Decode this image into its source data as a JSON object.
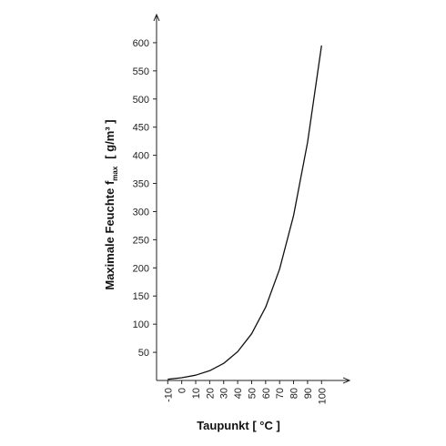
{
  "chart_data": {
    "type": "line",
    "y_label": "Maximale Feuchte f",
    "y_label_subscript": "max",
    "y_label_unit": "[ g/m³ ]",
    "x_label": "Taupunkt [ °C ]",
    "x": [
      -10,
      0,
      10,
      20,
      30,
      40,
      50,
      60,
      70,
      80,
      90,
      100
    ],
    "values": [
      2.1,
      4.8,
      9.4,
      17.3,
      30.4,
      51.1,
      83,
      130,
      198,
      293,
      423,
      595
    ],
    "color": "#111111",
    "xlim": [
      -18,
      120
    ],
    "xticks": [
      -10,
      0,
      10,
      20,
      30,
      40,
      50,
      60,
      70,
      80,
      90,
      100
    ],
    "ylim": [
      0,
      650
    ],
    "yticks": [
      50,
      100,
      150,
      200,
      250,
      300,
      350,
      400,
      450,
      500,
      550,
      600
    ],
    "grid": false
  }
}
